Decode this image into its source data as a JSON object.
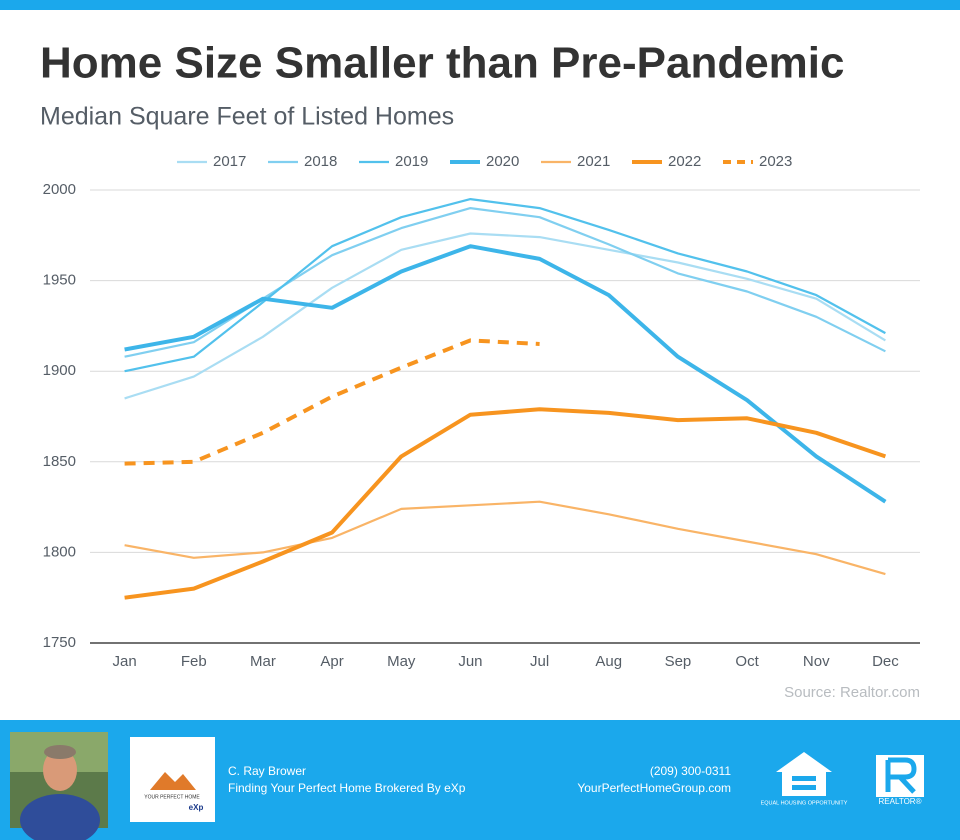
{
  "chart_data": {
    "type": "line",
    "title": "Home Size Smaller than Pre-Pandemic",
    "subtitle": "Median Square Feet of Listed Homes",
    "source": "Source: Realtor.com",
    "categories": [
      "Jan",
      "Feb",
      "Mar",
      "Apr",
      "May",
      "Jun",
      "Jul",
      "Aug",
      "Sep",
      "Oct",
      "Nov",
      "Dec"
    ],
    "ylim": [
      1750,
      2000
    ],
    "yticks": [
      1750,
      1800,
      1850,
      1900,
      1950,
      2000
    ],
    "grid": true,
    "legend": "top",
    "series": [
      {
        "name": "2017",
        "color": "#a9ddf3",
        "values": [
          1885,
          1897,
          1919,
          1946,
          1967,
          1976,
          1974,
          1967,
          1960,
          1951,
          1940,
          1917
        ]
      },
      {
        "name": "2018",
        "color": "#80cff0",
        "values": [
          1908,
          1916,
          1940,
          1964,
          1979,
          1990,
          1985,
          1970,
          1954,
          1944,
          1930,
          1911
        ]
      },
      {
        "name": "2019",
        "color": "#52c1ec",
        "values": [
          1900,
          1908,
          1938,
          1969,
          1985,
          1995,
          1990,
          1978,
          1965,
          1955,
          1942,
          1921
        ]
      },
      {
        "name": "2020",
        "color": "#3db5e9",
        "bold": true,
        "values": [
          1912,
          1919,
          1940,
          1935,
          1955,
          1969,
          1962,
          1942,
          1908,
          1884,
          1853,
          1828
        ]
      },
      {
        "name": "2021",
        "color": "#f9b467",
        "values": [
          1804,
          1797,
          1800,
          1808,
          1824,
          1826,
          1828,
          1821,
          1813,
          1806,
          1799,
          1788
        ]
      },
      {
        "name": "2022",
        "color": "#f7941f",
        "bold": true,
        "values": [
          1775,
          1780,
          1795,
          1811,
          1853,
          1876,
          1879,
          1877,
          1873,
          1874,
          1866,
          1853
        ]
      },
      {
        "name": "2023",
        "color": "#f7941f",
        "bold": true,
        "dashed": true,
        "values": [
          1849,
          1850,
          1866,
          1886,
          1902,
          1917,
          1915,
          null,
          null,
          null,
          null,
          null
        ]
      }
    ]
  },
  "footer": {
    "name": "C. Ray Brower",
    "tagline": "Finding Your Perfect Home Brokered By eXp",
    "phone": "(209) 300-0311",
    "website": "YourPerfectHomeGroup.com",
    "logo_title": "YOUR PERFECT HOME",
    "logo_brand": "eXp",
    "equal_housing": "EQUAL HOUSING OPPORTUNITY",
    "realtor": "REALTOR®"
  }
}
